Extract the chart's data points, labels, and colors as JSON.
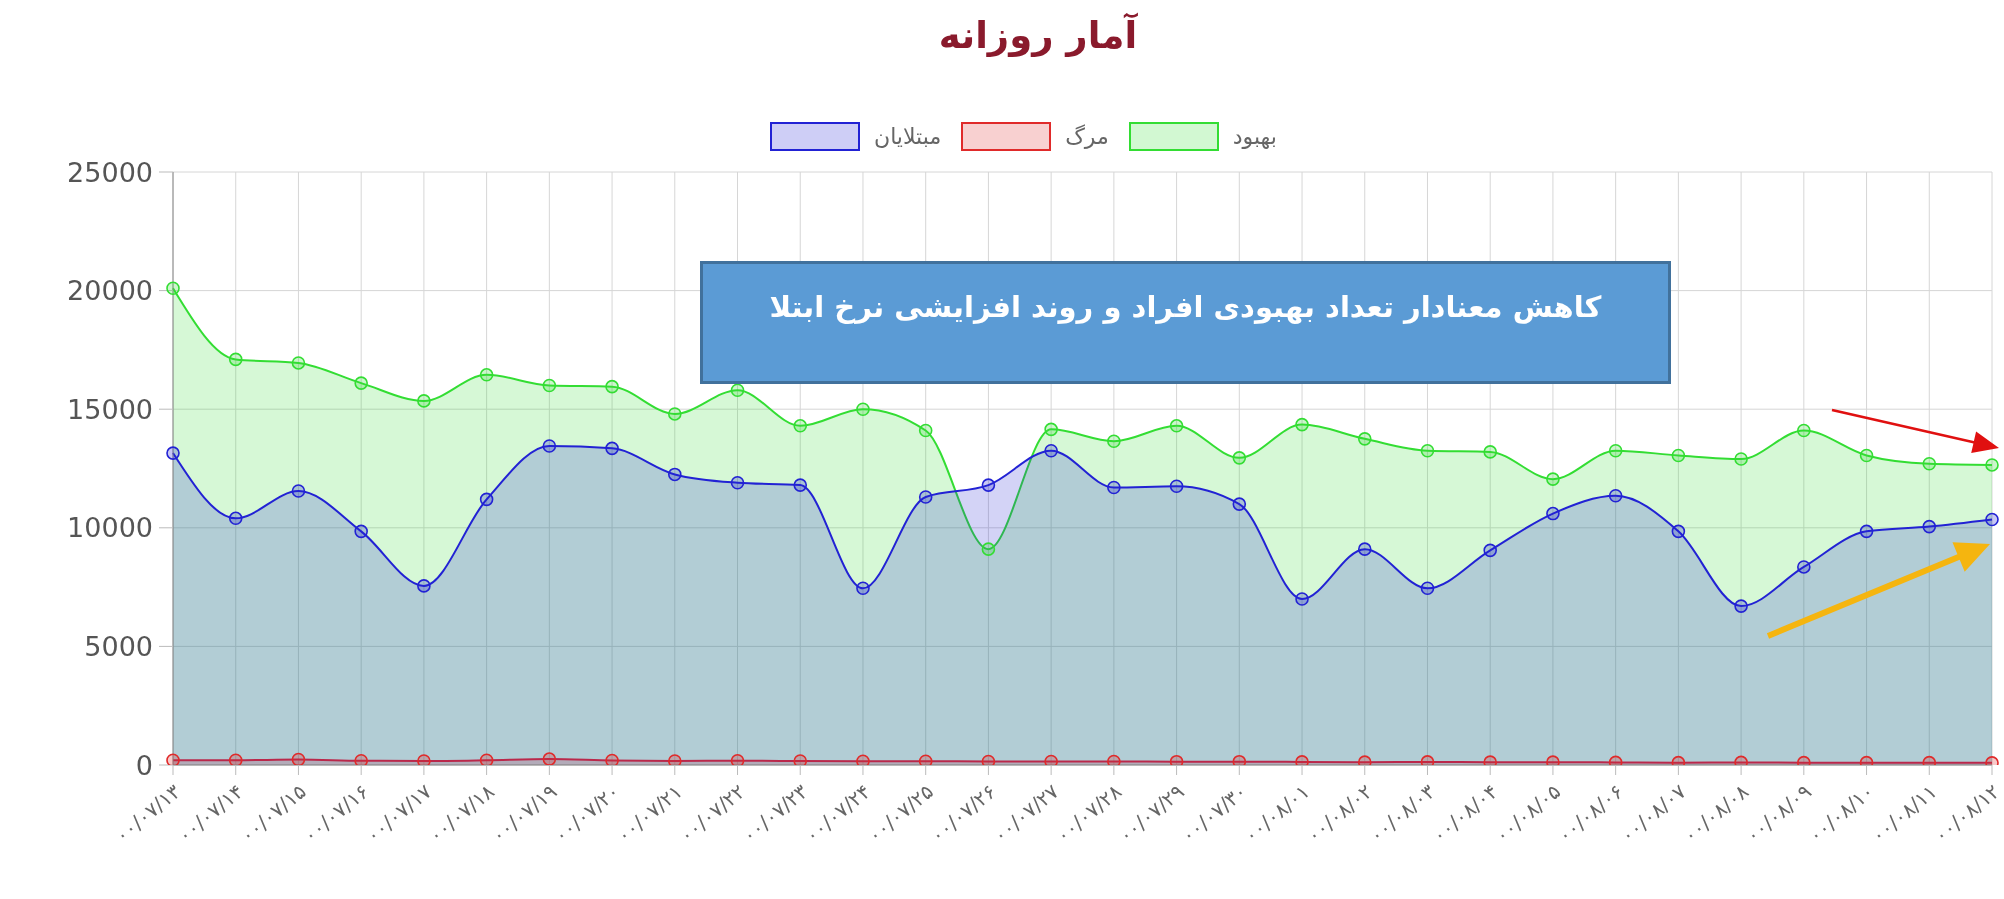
{
  "chart_data": {
    "type": "area",
    "title": "آمار روزانه",
    "categories": [
      "۰۰/۰۷/۱۳",
      "۰۰/۰۷/۱۴",
      "۰۰/۰۷/۱۵",
      "۰۰/۰۷/۱۶",
      "۰۰/۰۷/۱۷",
      "۰۰/۰۷/۱۸",
      "۰۰/۰۷/۱۹",
      "۰۰/۰۷/۲۰",
      "۰۰/۰۷/۲۱",
      "۰۰/۰۷/۲۲",
      "۰۰/۰۷/۲۳",
      "۰۰/۰۷/۲۴",
      "۰۰/۰۷/۲۵",
      "۰۰/۰۷/۲۶",
      "۰۰/۰۷/۲۷",
      "۰۰/۰۷/۲۸",
      "۰۰/۰۷/۲۹",
      "۰۰/۰۷/۳۰",
      "۰۰/۰۸/۰۱",
      "۰۰/۰۸/۰۲",
      "۰۰/۰۸/۰۳",
      "۰۰/۰۸/۰۴",
      "۰۰/۰۸/۰۵",
      "۰۰/۰۸/۰۶",
      "۰۰/۰۸/۰۷",
      "۰۰/۰۸/۰۸",
      "۰۰/۰۸/۰۹",
      "۰۰/۰۸/۱۰",
      "۰۰/۰۸/۱۱",
      "۰۰/۰۸/۱۲"
    ],
    "series": [
      {
        "name": "مبتلایان",
        "color": "#2222d4",
        "values": [
          13150,
          10400,
          11550,
          9850,
          7550,
          11200,
          13450,
          13350,
          12250,
          11900,
          11800,
          7450,
          11300,
          11800,
          13250,
          11700,
          11750,
          11000,
          7000,
          9100,
          7450,
          9050,
          10600,
          11350,
          9850,
          6700,
          8350,
          9850,
          10050,
          10350
        ]
      },
      {
        "name": "مرگ",
        "color": "#e02a2a",
        "values": [
          200,
          200,
          230,
          180,
          170,
          200,
          250,
          190,
          170,
          180,
          170,
          160,
          160,
          150,
          150,
          150,
          140,
          140,
          130,
          120,
          130,
          120,
          120,
          110,
          100,
          110,
          100,
          100,
          100,
          90
        ]
      },
      {
        "name": "بهبود",
        "color": "#33dd33",
        "values": [
          20100,
          17100,
          16950,
          16100,
          15350,
          16450,
          16000,
          15950,
          14800,
          15800,
          14300,
          15000,
          14100,
          9100,
          14150,
          13650,
          14300,
          12950,
          14350,
          13750,
          13250,
          13200,
          12050,
          13250,
          13050,
          12900,
          14100,
          13050,
          12700,
          12650
        ]
      }
    ],
    "ylim": [
      0,
      25000
    ],
    "yticks": [
      0,
      5000,
      10000,
      15000,
      20000,
      25000
    ],
    "grid": true,
    "legend": "top",
    "marker": "circle",
    "annotations": [
      "کاهش معنادار تعداد بهبودی افراد و روند افزایشی نرخ ابتلا"
    ]
  }
}
